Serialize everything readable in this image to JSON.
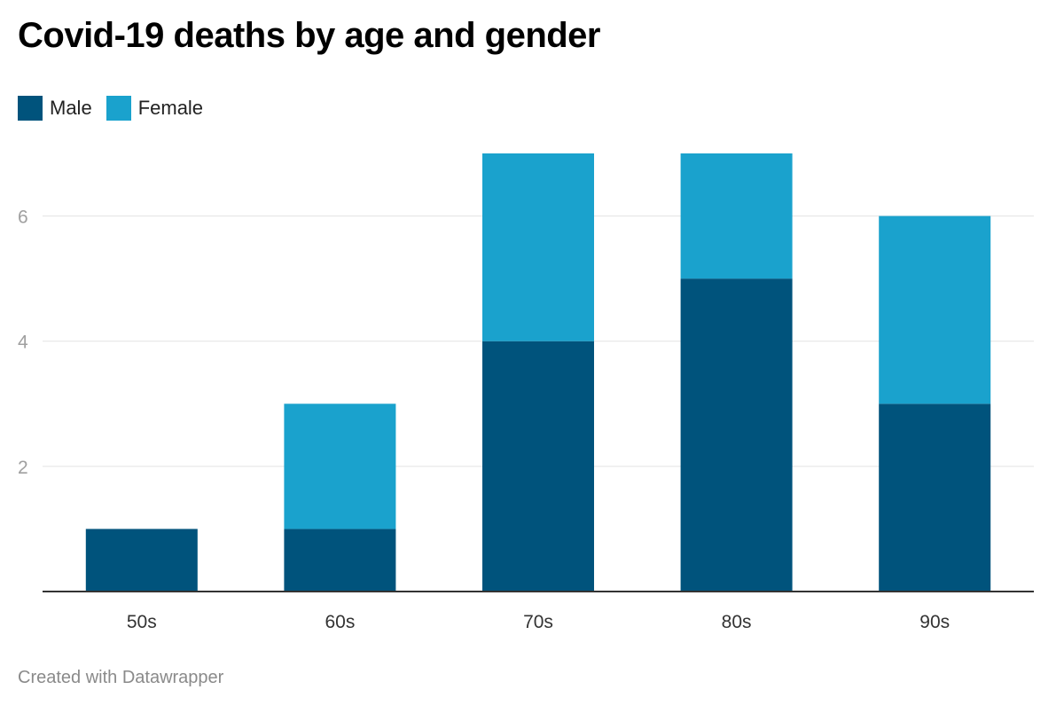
{
  "chart_data": {
    "type": "bar",
    "stacked": true,
    "title": "Covid-19 deaths by age and gender",
    "categories": [
      "50s",
      "60s",
      "70s",
      "80s",
      "90s"
    ],
    "series": [
      {
        "name": "Male",
        "values": [
          1,
          1,
          4,
          5,
          3
        ],
        "color": "#00537c"
      },
      {
        "name": "Female",
        "values": [
          0,
          2,
          3,
          2,
          3
        ],
        "color": "#1aa2cd"
      }
    ],
    "ylim": [
      0,
      7
    ],
    "yticks": [
      "2",
      "4",
      "6"
    ],
    "grid": true,
    "legend": "top-left",
    "xlabel": "",
    "ylabel": ""
  },
  "footer": "Created with Datawrapper"
}
